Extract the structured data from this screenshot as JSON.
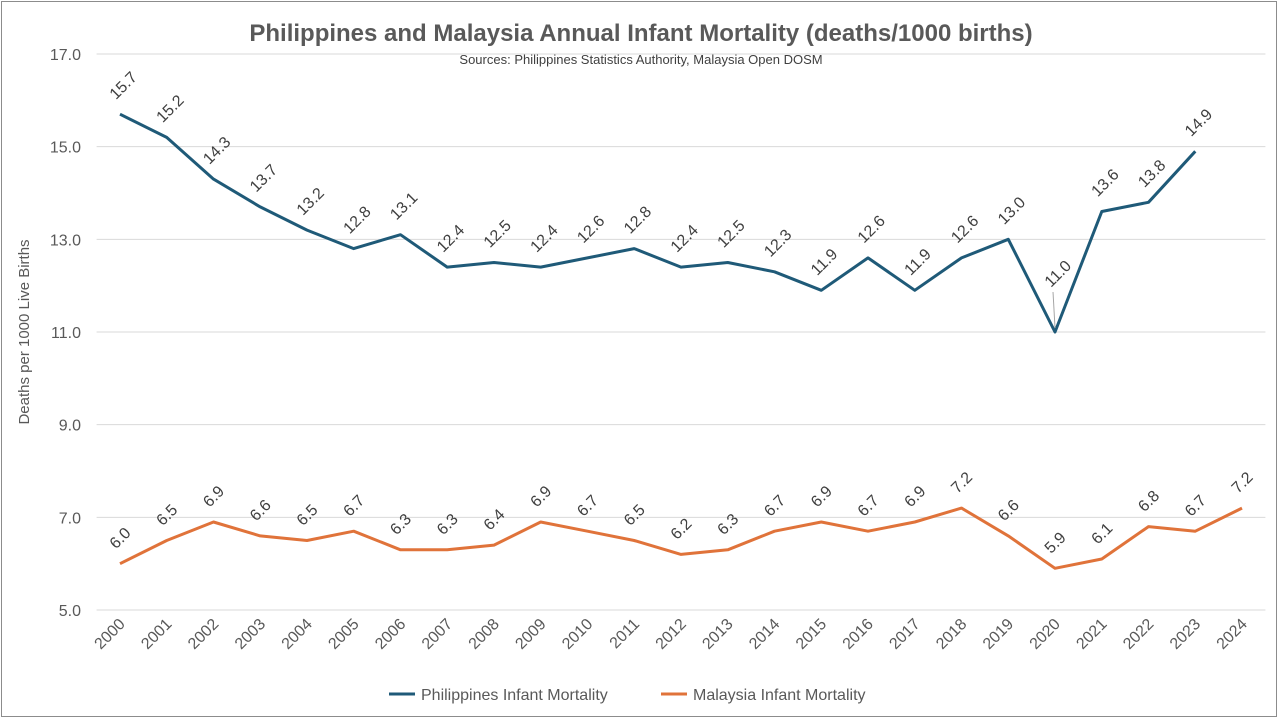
{
  "chart_data": {
    "type": "line",
    "title": "Philippines and Malaysia Annual Infant Mortality (deaths/1000 births)",
    "subtitle": "Sources: Philippines Statistics Authority, Malaysia Open DOSM",
    "xlabel": "",
    "ylabel": "Deaths per 1000 Live Births",
    "ylim": [
      5.0,
      17.0
    ],
    "yticks": [
      "5.0",
      "7.0",
      "9.0",
      "11.0",
      "13.0",
      "15.0",
      "17.0"
    ],
    "grid": true,
    "legend_position": "bottom",
    "categories": [
      "2000",
      "2001",
      "2002",
      "2003",
      "2004",
      "2005",
      "2006",
      "2007",
      "2008",
      "2009",
      "2010",
      "2011",
      "2012",
      "2013",
      "2014",
      "2015",
      "2016",
      "2017",
      "2018",
      "2019",
      "2020",
      "2021",
      "2022",
      "2023",
      "2024"
    ],
    "series": [
      {
        "name": "Philippines Infant Mortality",
        "color": "#1f5a78",
        "values": [
          15.7,
          15.2,
          14.3,
          13.7,
          13.2,
          12.8,
          13.1,
          12.4,
          12.5,
          12.4,
          12.6,
          12.8,
          12.4,
          12.5,
          12.3,
          11.9,
          12.6,
          11.9,
          12.6,
          13.0,
          11.0,
          13.6,
          13.8,
          14.9,
          null
        ]
      },
      {
        "name": "Malaysia Infant Mortality",
        "color": "#e0733a",
        "values": [
          6.0,
          6.5,
          6.9,
          6.6,
          6.5,
          6.7,
          6.3,
          6.3,
          6.4,
          6.9,
          6.7,
          6.5,
          6.2,
          6.3,
          6.7,
          6.9,
          6.7,
          6.9,
          7.2,
          6.6,
          5.9,
          6.1,
          6.8,
          6.7,
          7.2
        ]
      }
    ]
  }
}
